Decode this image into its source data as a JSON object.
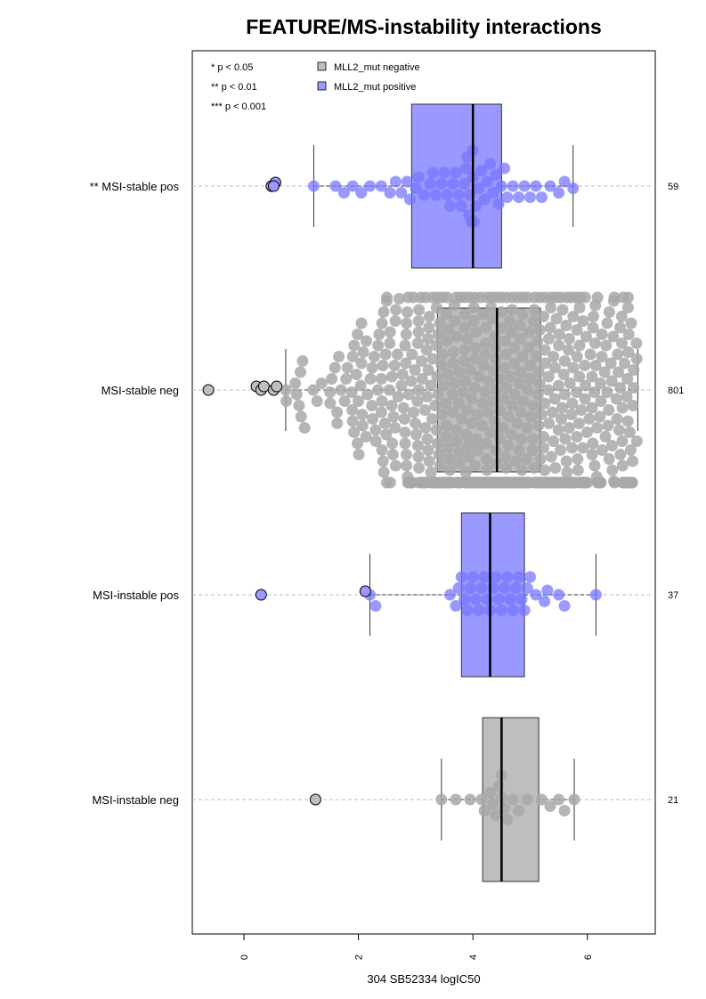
{
  "chart_data": {
    "type": "beeswarm-boxplot",
    "title": "FEATURE/MS-instability interactions",
    "xlabel": "304 SB52334 logIC50",
    "xlim": [
      -0.93,
      7.22
    ],
    "x_ticks": [
      0,
      2,
      4,
      6
    ],
    "x_tick_labels": [
      "0",
      "2",
      "4",
      "6"
    ],
    "x_tick_orientation": "vertical",
    "grid": "dashed horizontal reference line per group",
    "significance_legend": [
      "* p < 0.05",
      "** p < 0.01",
      "*** p < 0.001"
    ],
    "legend": [
      {
        "label": "MLL2_mut negative",
        "color": "#bebebe"
      },
      {
        "label": "MLL2_mut positive",
        "color": "#9999ff"
      }
    ],
    "colors": {
      "negative_box": "#bebebe",
      "positive_box": "#9999ff",
      "negative_point": "#a8a8a8",
      "positive_point": "#7777ff"
    },
    "groups": [
      {
        "label": "** MSI-stable pos",
        "n": "59",
        "status": "positive",
        "box": {
          "q1": 2.93,
          "median": 4.0,
          "q3": 4.5,
          "whisker_low": 1.22,
          "whisker_high": 5.75
        },
        "outliers": [
          0.48,
          0.55,
          0.52
        ],
        "points": [
          1.22,
          1.6,
          1.75,
          1.9,
          2.05,
          2.2,
          2.4,
          2.55,
          2.65,
          2.75,
          2.85,
          2.9,
          3.0,
          3.05,
          3.15,
          3.25,
          3.3,
          3.35,
          3.45,
          3.5,
          3.55,
          3.6,
          3.65,
          3.7,
          3.75,
          3.8,
          3.85,
          3.88,
          3.9,
          3.93,
          3.95,
          3.97,
          4.0,
          4.0,
          4.02,
          4.05,
          4.1,
          4.15,
          4.2,
          4.25,
          4.3,
          4.35,
          4.4,
          4.45,
          4.5,
          4.55,
          4.6,
          4.7,
          4.8,
          4.9,
          5.0,
          5.1,
          5.2,
          5.35,
          5.5,
          5.6,
          5.75
        ]
      },
      {
        "label": "MSI-stable neg",
        "n": "801",
        "status": "negative",
        "box": {
          "q1": 3.38,
          "median": 4.42,
          "q3": 5.18,
          "whisker_low": 0.73,
          "whisker_high": 6.88
        },
        "outliers": [
          -0.62,
          0.22,
          0.3,
          0.35,
          0.52,
          0.57
        ],
        "points": []
      },
      {
        "label": "MSI-instable pos",
        "n": "37",
        "status": "positive",
        "box": {
          "q1": 3.8,
          "median": 4.3,
          "q3": 4.9,
          "whisker_low": 2.2,
          "whisker_high": 6.15
        },
        "outliers": [
          0.3,
          2.12
        ],
        "points": [
          2.2,
          2.3,
          3.6,
          3.7,
          3.75,
          3.8,
          3.85,
          3.9,
          3.95,
          4.0,
          4.05,
          4.1,
          4.15,
          4.2,
          4.25,
          4.3,
          4.35,
          4.4,
          4.45,
          4.5,
          4.55,
          4.6,
          4.65,
          4.7,
          4.75,
          4.8,
          4.85,
          4.9,
          4.95,
          5.0,
          5.1,
          5.25,
          5.3,
          5.5,
          5.6,
          6.15
        ]
      },
      {
        "label": "MSI-instable neg",
        "n": "21",
        "status": "negative",
        "box": {
          "q1": 4.17,
          "median": 4.5,
          "q3": 5.15,
          "whisker_low": 3.45,
          "whisker_high": 5.77
        },
        "outliers": [
          1.25
        ],
        "points": [
          3.45,
          3.7,
          3.95,
          4.15,
          4.2,
          4.3,
          4.35,
          4.4,
          4.45,
          4.5,
          4.5,
          4.55,
          4.6,
          4.7,
          4.8,
          4.95,
          5.2,
          5.35,
          5.5,
          5.6,
          5.77
        ]
      }
    ]
  }
}
